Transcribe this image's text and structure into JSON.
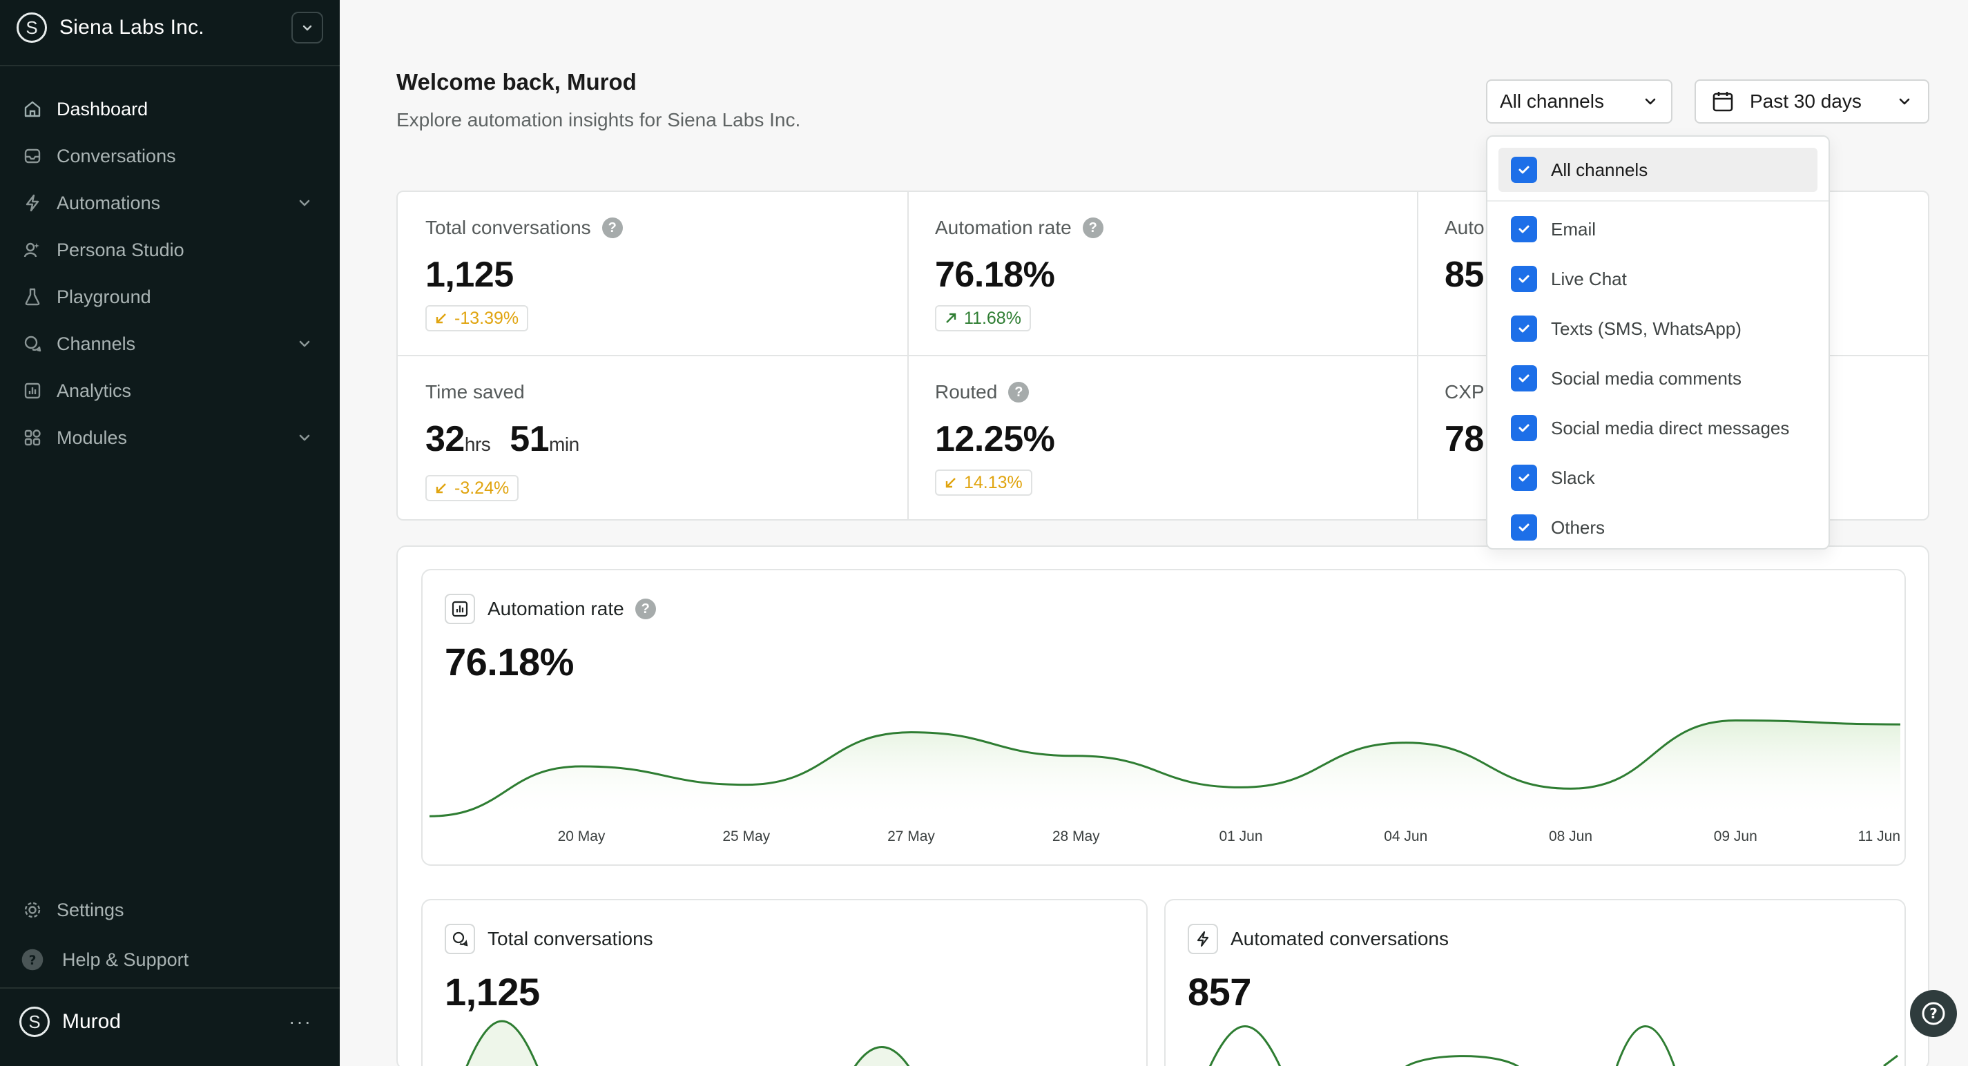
{
  "org": {
    "name": "Siena Labs Inc.",
    "logo_letter": "S"
  },
  "nav": {
    "items": [
      {
        "label": "Dashboard",
        "icon": "home-icon",
        "active": true,
        "expandable": false
      },
      {
        "label": "Conversations",
        "icon": "inbox-icon",
        "active": false,
        "expandable": false
      },
      {
        "label": "Automations",
        "icon": "bolt-icon",
        "active": false,
        "expandable": true
      },
      {
        "label": "Persona Studio",
        "icon": "persona-icon",
        "active": false,
        "expandable": false
      },
      {
        "label": "Playground",
        "icon": "flask-icon",
        "active": false,
        "expandable": false
      },
      {
        "label": "Channels",
        "icon": "chat-bubbles-icon",
        "active": false,
        "expandable": true
      },
      {
        "label": "Analytics",
        "icon": "bar-chart-icon",
        "active": false,
        "expandable": false
      },
      {
        "label": "Modules",
        "icon": "grid-icon",
        "active": false,
        "expandable": true
      }
    ],
    "settings_label": "Settings",
    "help_label": "Help & Support"
  },
  "user": {
    "name": "Murod",
    "more": "···"
  },
  "header": {
    "welcome": "Welcome back, Murod",
    "subtitle": "Explore automation insights for Siena Labs Inc."
  },
  "filters": {
    "channel_selected": "All channels",
    "date_selected": "Past 30 days"
  },
  "stats": {
    "total_conversations": {
      "label": "Total conversations",
      "value": "1,125",
      "change": "-13.39%",
      "direction": "down"
    },
    "automation_rate": {
      "label": "Automation rate",
      "value": "76.18%",
      "change": "11.68%",
      "direction": "up"
    },
    "automated_partial": {
      "label": "Auto",
      "value": "85"
    },
    "time_saved": {
      "label": "Time saved",
      "hours": "32",
      "hours_unit": "hrs",
      "minutes": "51",
      "minutes_unit": "min",
      "change": "-3.24%",
      "direction": "down"
    },
    "routed": {
      "label": "Routed",
      "value": "12.25%",
      "change": "14.13%",
      "direction": "down"
    },
    "cxp_partial": {
      "label": "CXP",
      "value": "78."
    }
  },
  "channel_dropdown": {
    "all_label": "All channels",
    "options": [
      "Email",
      "Live Chat",
      "Texts (SMS, WhatsApp)",
      "Social media comments",
      "Social media direct messages",
      "Slack",
      "Others"
    ]
  },
  "automation_chart": {
    "title": "Automation rate",
    "value": "76.18%",
    "icon": "chart-icon"
  },
  "chart_data": {
    "type": "area",
    "x": [
      "20 May",
      "25 May",
      "27 May",
      "28 May",
      "01 Jun",
      "04 Jun",
      "08 Jun",
      "09 Jun",
      "11 Jun"
    ],
    "series": [
      {
        "values": [
          40,
          26,
          66,
          48,
          24,
          58,
          23,
          75,
          72
        ]
      }
    ],
    "ylim": [
      0,
      100
    ],
    "color": "#2e7d32"
  },
  "cards": {
    "total_conversations": {
      "title": "Total conversations",
      "value": "1,125",
      "icon": "chat-bubbles-icon"
    },
    "automated_conversations": {
      "title": "Automated conversations",
      "value": "857",
      "icon": "bolt-icon"
    }
  },
  "colors": {
    "sidebar_bg": "#0e1a1b",
    "accent_blue": "#1d6fe8",
    "up_green": "#2e7d32",
    "down_amber": "#e0a40f"
  }
}
